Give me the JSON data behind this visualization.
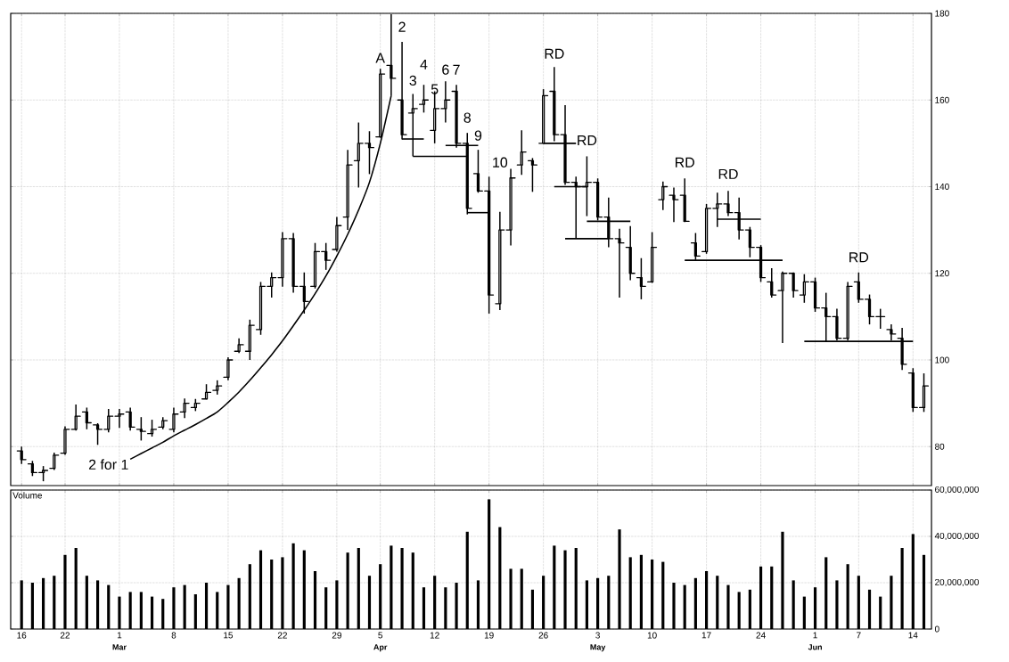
{
  "chart_data": [
    {
      "type": "candlestick",
      "color": "#000000",
      "grid": true,
      "tick_labels": "y",
      "categories": [
        "16",
        null,
        null,
        null,
        "22",
        null,
        null,
        null,
        null,
        "1",
        null,
        null,
        null,
        null,
        "8",
        null,
        null,
        null,
        null,
        "15",
        null,
        null,
        null,
        null,
        "22",
        null,
        null,
        null,
        null,
        "29",
        null,
        null,
        null,
        "5",
        null,
        null,
        null,
        null,
        "12",
        null,
        null,
        null,
        null,
        "19",
        null,
        null,
        null,
        null,
        "26",
        null,
        null,
        null,
        null,
        "3",
        null,
        null,
        null,
        null,
        "10",
        null,
        null,
        null,
        null,
        "17",
        null,
        null,
        null,
        null,
        "24",
        null,
        null,
        null,
        null,
        "1",
        null,
        null,
        null,
        "7",
        null,
        null,
        null,
        null,
        "14",
        null
      ],
      "ohlc": [
        [
          79,
          80,
          76,
          77
        ],
        [
          76,
          76.7,
          73.2,
          74
        ],
        [
          74,
          75.5,
          72,
          74.5
        ],
        [
          75,
          78.6,
          74.6,
          78
        ],
        [
          78.5,
          84.7,
          78.1,
          84
        ],
        [
          84,
          89.7,
          83.7,
          87
        ],
        [
          88,
          89,
          84,
          85.5
        ],
        [
          85,
          85.4,
          80.4,
          84
        ],
        [
          84,
          88.7,
          83.3,
          87
        ],
        [
          87,
          88.7,
          84.3,
          87.5
        ],
        [
          88,
          89,
          83.7,
          84.5
        ],
        [
          84,
          86.8,
          81.4,
          83.5
        ],
        [
          83,
          86.2,
          82.3,
          84
        ],
        [
          84.5,
          86.8,
          84,
          86
        ],
        [
          84,
          89,
          83.3,
          87.5
        ],
        [
          88,
          91.1,
          86.6,
          90
        ],
        [
          89,
          91,
          88.2,
          90
        ],
        [
          91,
          94.4,
          90.9,
          92.5
        ],
        [
          93,
          95.3,
          92,
          94
        ],
        [
          96,
          100.6,
          95.3,
          100
        ],
        [
          102,
          105,
          101.6,
          103.5
        ],
        [
          102,
          109.3,
          100,
          108
        ],
        [
          107,
          118,
          105.8,
          117
        ],
        [
          117,
          120.2,
          114.4,
          119
        ],
        [
          119,
          129.5,
          116.9,
          128
        ],
        [
          128,
          129.3,
          115.5,
          117
        ],
        [
          117,
          120.2,
          110.7,
          113.5
        ],
        [
          117,
          127,
          116.5,
          125
        ],
        [
          125,
          127,
          120.8,
          123
        ],
        [
          125.5,
          133,
          125,
          131
        ],
        [
          133,
          148.5,
          130,
          145
        ],
        [
          146,
          154.8,
          139.8,
          150
        ],
        [
          150,
          152.8,
          142.9,
          149
        ],
        [
          151.5,
          167.2,
          151.3,
          166
        ],
        [
          168,
          179.8,
          161,
          165
        ],
        [
          160,
          173.4,
          150.9,
          152
        ],
        [
          157,
          161.4,
          147,
          158
        ],
        [
          159,
          163.5,
          157.1,
          160
        ],
        [
          153,
          162,
          150,
          158
        ],
        [
          158,
          164.3,
          154.8,
          160
        ],
        [
          162,
          163.5,
          149,
          150
        ],
        [
          150,
          152.4,
          133.6,
          135
        ],
        [
          143,
          148.5,
          138.6,
          139
        ],
        [
          139,
          142.3,
          110.7,
          115
        ],
        [
          113,
          134.2,
          111.5,
          130
        ],
        [
          130,
          144.1,
          126.4,
          142
        ],
        [
          145,
          153,
          142.7,
          148
        ],
        [
          146,
          146.6,
          138.8,
          145
        ],
        [
          150,
          162.5,
          149.9,
          161
        ],
        [
          162,
          167.6,
          150.5,
          152
        ],
        [
          152,
          158.8,
          140.4,
          141
        ],
        [
          141,
          142.3,
          128,
          140
        ],
        [
          140,
          147,
          133.2,
          141
        ],
        [
          141,
          141.9,
          132.2,
          133
        ],
        [
          133,
          137.5,
          126,
          128
        ],
        [
          128,
          130.3,
          114.4,
          127
        ],
        [
          126,
          130.9,
          118.4,
          120
        ],
        [
          119,
          123.5,
          114,
          117
        ],
        [
          118,
          129.5,
          117.8,
          126
        ],
        [
          137,
          141.2,
          134.6,
          140
        ],
        [
          138,
          139.8,
          131.8,
          137
        ],
        [
          138,
          141.9,
          131.8,
          132
        ],
        [
          127,
          129.3,
          123.1,
          124
        ],
        [
          125,
          136,
          124.5,
          135
        ],
        [
          135,
          138.6,
          130.7,
          136
        ],
        [
          136,
          139,
          133.2,
          134
        ],
        [
          134,
          137.5,
          127.8,
          130
        ],
        [
          130,
          130.7,
          123.7,
          126
        ],
        [
          126,
          126.5,
          118,
          119
        ],
        [
          118,
          121.2,
          114.4,
          115
        ],
        [
          116,
          120.4,
          103.9,
          120
        ],
        [
          120,
          120.2,
          114.4,
          116
        ],
        [
          115,
          119.8,
          113.2,
          118
        ],
        [
          118,
          119,
          111.1,
          112
        ],
        [
          112,
          115.5,
          104.3,
          110
        ],
        [
          110,
          111.8,
          104.5,
          105
        ],
        [
          105,
          118,
          104.5,
          117
        ],
        [
          118,
          120.2,
          113.2,
          114
        ],
        [
          114,
          115.1,
          108.2,
          110
        ],
        [
          110,
          111.8,
          107.2,
          110
        ],
        [
          107,
          108.2,
          104.5,
          106
        ],
        [
          105,
          107.4,
          97.7,
          99
        ],
        [
          97,
          98.1,
          88,
          89
        ],
        [
          89,
          96.9,
          88,
          94
        ]
      ],
      "series": [
        {
          "type": "line",
          "color": "#000000",
          "values": [
            null,
            null,
            null,
            null,
            null,
            null,
            null,
            null,
            null,
            null,
            77.1,
            78.4,
            79.7,
            81,
            82.5,
            83.8,
            85.1,
            86.5,
            88,
            90.2,
            92.6,
            95.3,
            98.2,
            101.2,
            104.4,
            107.9,
            111.5,
            115.3,
            119.4,
            124,
            129,
            134.6,
            141,
            150,
            161,
            null,
            null,
            null,
            null,
            null,
            null,
            null,
            null,
            null,
            null,
            null,
            null,
            null,
            null,
            null,
            null,
            null,
            null,
            null,
            null,
            null,
            null,
            null,
            null,
            null,
            null,
            null,
            null,
            null,
            null,
            null,
            null,
            null,
            null,
            null,
            null,
            null,
            null,
            null,
            null,
            null,
            null,
            null,
            null,
            null,
            null,
            null,
            null,
            null
          ]
        },
        {
          "type": "line",
          "color": "#000000",
          "values": [
            null,
            null,
            null,
            null,
            null,
            null,
            null,
            null,
            null,
            null,
            null,
            null,
            null,
            null,
            null,
            null,
            null,
            null,
            null,
            null,
            null,
            null,
            null,
            null,
            null,
            null,
            null,
            null,
            null,
            null,
            null,
            null,
            null,
            null,
            null,
            151,
            151,
            151,
            null,
            null,
            null,
            null,
            null,
            null,
            null,
            null,
            null,
            null,
            null,
            null,
            null,
            null,
            null,
            null,
            null,
            null,
            null,
            null,
            null,
            null,
            null,
            null,
            null,
            null,
            null,
            null,
            null,
            null,
            null,
            null,
            null,
            null,
            null,
            null,
            null,
            null,
            null,
            null,
            null,
            null,
            null,
            null,
            null,
            null
          ]
        },
        {
          "type": "line",
          "color": "#000000",
          "values": [
            null,
            null,
            null,
            null,
            null,
            null,
            null,
            null,
            null,
            null,
            null,
            null,
            null,
            null,
            null,
            null,
            null,
            null,
            null,
            null,
            null,
            null,
            null,
            null,
            null,
            null,
            null,
            null,
            null,
            null,
            null,
            null,
            null,
            null,
            null,
            null,
            147,
            147,
            147,
            147,
            147,
            147,
            null,
            null,
            null,
            null,
            null,
            null,
            null,
            null,
            null,
            null,
            null,
            null,
            null,
            null,
            null,
            null,
            null,
            null,
            null,
            null,
            null,
            null,
            null,
            null,
            null,
            null,
            null,
            null,
            null,
            null,
            null,
            null,
            null,
            null,
            null,
            null,
            null,
            null,
            null,
            null,
            null,
            null
          ]
        },
        {
          "type": "line",
          "color": "#000000",
          "values": [
            null,
            null,
            null,
            null,
            null,
            null,
            null,
            null,
            null,
            null,
            null,
            null,
            null,
            null,
            null,
            null,
            null,
            null,
            null,
            null,
            null,
            null,
            null,
            null,
            null,
            null,
            null,
            null,
            null,
            null,
            null,
            null,
            null,
            null,
            null,
            null,
            null,
            null,
            null,
            149.5,
            149.5,
            149.5,
            149.5,
            null,
            null,
            null,
            null,
            null,
            null,
            null,
            null,
            null,
            null,
            null,
            null,
            null,
            null,
            null,
            null,
            null,
            null,
            null,
            null,
            null,
            null,
            null,
            null,
            null,
            null,
            null,
            null,
            null,
            null,
            null,
            null,
            null,
            null,
            null,
            null,
            null,
            null,
            null,
            null,
            null
          ]
        },
        {
          "type": "line",
          "color": "#000000",
          "values": [
            null,
            null,
            null,
            null,
            null,
            null,
            null,
            null,
            null,
            null,
            null,
            null,
            null,
            null,
            null,
            null,
            null,
            null,
            null,
            null,
            null,
            null,
            null,
            null,
            null,
            null,
            null,
            null,
            null,
            null,
            null,
            null,
            null,
            null,
            null,
            null,
            null,
            null,
            null,
            null,
            null,
            134,
            134,
            134,
            null,
            null,
            null,
            null,
            null,
            null,
            null,
            null,
            null,
            null,
            null,
            null,
            null,
            null,
            null,
            null,
            null,
            null,
            null,
            null,
            null,
            null,
            null,
            null,
            null,
            null,
            null,
            null,
            null,
            null,
            null,
            null,
            null,
            null,
            null,
            null,
            null,
            null,
            null,
            null
          ]
        },
        {
          "type": "line",
          "color": "#000000",
          "values": [
            null,
            null,
            null,
            null,
            null,
            null,
            null,
            null,
            null,
            null,
            null,
            null,
            null,
            null,
            null,
            null,
            null,
            null,
            null,
            null,
            null,
            null,
            null,
            null,
            null,
            null,
            null,
            null,
            null,
            null,
            null,
            null,
            null,
            null,
            null,
            null,
            null,
            null,
            null,
            null,
            null,
            null,
            null,
            null,
            null,
            null,
            null,
            null,
            150,
            150,
            150,
            150,
            null,
            null,
            null,
            null,
            null,
            null,
            null,
            null,
            null,
            null,
            null,
            null,
            null,
            null,
            null,
            null,
            null,
            null,
            null,
            null,
            null,
            null,
            null,
            null,
            null,
            null,
            null,
            null,
            null,
            null,
            null,
            null
          ]
        },
        {
          "type": "line",
          "color": "#000000",
          "values": [
            null,
            null,
            null,
            null,
            null,
            null,
            null,
            null,
            null,
            null,
            null,
            null,
            null,
            null,
            null,
            null,
            null,
            null,
            null,
            null,
            null,
            null,
            null,
            null,
            null,
            null,
            null,
            null,
            null,
            null,
            null,
            null,
            null,
            null,
            null,
            null,
            null,
            null,
            null,
            null,
            null,
            null,
            null,
            null,
            null,
            null,
            null,
            null,
            null,
            140,
            140,
            140,
            140,
            null,
            null,
            null,
            null,
            null,
            null,
            null,
            null,
            null,
            null,
            null,
            null,
            null,
            null,
            null,
            null,
            null,
            null,
            null,
            null,
            null,
            null,
            null,
            null,
            null,
            null,
            null,
            null,
            null,
            null,
            null
          ]
        },
        {
          "type": "line",
          "color": "#000000",
          "values": [
            null,
            null,
            null,
            null,
            null,
            null,
            null,
            null,
            null,
            null,
            null,
            null,
            null,
            null,
            null,
            null,
            null,
            null,
            null,
            null,
            null,
            null,
            null,
            null,
            null,
            null,
            null,
            null,
            null,
            null,
            null,
            null,
            null,
            null,
            null,
            null,
            null,
            null,
            null,
            null,
            null,
            null,
            null,
            null,
            null,
            null,
            null,
            null,
            null,
            null,
            128,
            128,
            128,
            128,
            128,
            null,
            null,
            null,
            null,
            null,
            null,
            null,
            null,
            null,
            null,
            null,
            null,
            null,
            null,
            null,
            null,
            null,
            null,
            null,
            null,
            null,
            null,
            null,
            null,
            null,
            null,
            null,
            null,
            null
          ]
        },
        {
          "type": "line",
          "color": "#000000",
          "values": [
            null,
            null,
            null,
            null,
            null,
            null,
            null,
            null,
            null,
            null,
            null,
            null,
            null,
            null,
            null,
            null,
            null,
            null,
            null,
            null,
            null,
            null,
            null,
            null,
            null,
            null,
            null,
            null,
            null,
            null,
            null,
            null,
            null,
            null,
            null,
            null,
            null,
            null,
            null,
            null,
            null,
            null,
            null,
            null,
            null,
            null,
            null,
            null,
            null,
            null,
            null,
            null,
            132,
            132,
            132,
            132,
            132,
            null,
            null,
            null,
            null,
            null,
            null,
            null,
            null,
            null,
            null,
            null,
            null,
            null,
            null,
            null,
            null,
            null,
            null,
            null,
            null,
            null,
            null,
            null,
            null,
            null,
            null,
            null
          ]
        },
        {
          "type": "line",
          "color": "#000000",
          "values": [
            null,
            null,
            null,
            null,
            null,
            null,
            null,
            null,
            null,
            null,
            null,
            null,
            null,
            null,
            null,
            null,
            null,
            null,
            null,
            null,
            null,
            null,
            null,
            null,
            null,
            null,
            null,
            null,
            null,
            null,
            null,
            null,
            null,
            null,
            null,
            null,
            null,
            null,
            null,
            null,
            null,
            null,
            null,
            null,
            null,
            null,
            null,
            null,
            null,
            null,
            null,
            null,
            null,
            null,
            null,
            null,
            null,
            null,
            null,
            null,
            null,
            123,
            123,
            123,
            123,
            123,
            123,
            123,
            123,
            123,
            123,
            null,
            null,
            null,
            null,
            null,
            null,
            null,
            null,
            null,
            null,
            null,
            null,
            null
          ]
        },
        {
          "type": "line",
          "color": "#000000",
          "values": [
            null,
            null,
            null,
            null,
            null,
            null,
            null,
            null,
            null,
            null,
            null,
            null,
            null,
            null,
            null,
            null,
            null,
            null,
            null,
            null,
            null,
            null,
            null,
            null,
            null,
            null,
            null,
            null,
            null,
            null,
            null,
            null,
            null,
            null,
            null,
            null,
            null,
            null,
            null,
            null,
            null,
            null,
            null,
            null,
            null,
            null,
            null,
            null,
            null,
            null,
            null,
            null,
            null,
            null,
            null,
            null,
            null,
            null,
            null,
            null,
            null,
            null,
            null,
            null,
            132.5,
            132.5,
            132.5,
            132.5,
            132.5,
            null,
            null,
            null,
            null,
            null,
            null,
            null,
            null,
            null,
            null,
            null,
            null,
            null,
            null,
            null
          ]
        },
        {
          "type": "line",
          "color": "#000000",
          "values": [
            null,
            null,
            null,
            null,
            null,
            null,
            null,
            null,
            null,
            null,
            null,
            null,
            null,
            null,
            null,
            null,
            null,
            null,
            null,
            null,
            null,
            null,
            null,
            null,
            null,
            null,
            null,
            null,
            null,
            null,
            null,
            null,
            null,
            null,
            null,
            null,
            null,
            null,
            null,
            null,
            null,
            null,
            null,
            null,
            null,
            null,
            null,
            null,
            null,
            null,
            null,
            null,
            null,
            null,
            null,
            null,
            null,
            null,
            null,
            null,
            null,
            null,
            null,
            null,
            null,
            null,
            null,
            null,
            null,
            null,
            null,
            null,
            104.3,
            104.3,
            104.3,
            104.3,
            104.3,
            104.3,
            104.3,
            104.3,
            104.3,
            104.3,
            104.3,
            null
          ]
        }
      ],
      "ylim": [
        71,
        180
      ],
      "yticks": [
        80,
        100,
        120,
        140,
        160,
        180
      ],
      "annotations": [
        "2 for 1",
        "A",
        "2",
        "3",
        "4",
        "5",
        "6",
        "7",
        "8",
        "9",
        "10",
        "RD",
        "RD",
        "RD",
        "RD",
        "RD"
      ]
    },
    {
      "type": "bar",
      "color": "#000000",
      "grid": true,
      "ylabel": "Volume",
      "categories": [
        "16",
        null,
        null,
        null,
        "22",
        null,
        null,
        null,
        null,
        "1",
        null,
        null,
        null,
        null,
        "8",
        null,
        null,
        null,
        null,
        "15",
        null,
        null,
        null,
        null,
        "22",
        null,
        null,
        null,
        null,
        "29",
        null,
        null,
        null,
        "5",
        null,
        null,
        null,
        null,
        "12",
        null,
        null,
        null,
        null,
        "19",
        null,
        null,
        null,
        null,
        "26",
        null,
        null,
        null,
        null,
        "3",
        null,
        null,
        null,
        null,
        "10",
        null,
        null,
        null,
        null,
        "17",
        null,
        null,
        null,
        null,
        "24",
        null,
        null,
        null,
        null,
        "1",
        null,
        null,
        null,
        "7",
        null,
        null,
        null,
        null,
        "14",
        null
      ],
      "values": [
        21000000,
        20000000,
        22000000,
        23000000,
        32000000,
        35000000,
        23000000,
        21000000,
        19000000,
        14000000,
        16000000,
        16000000,
        14000000,
        13000000,
        18000000,
        19000000,
        15000000,
        20000000,
        16000000,
        19000000,
        22000000,
        28000000,
        34000000,
        30000000,
        31000000,
        37000000,
        34000000,
        25000000,
        18000000,
        21000000,
        33000000,
        35000000,
        23000000,
        28000000,
        36000000,
        35000000,
        33000000,
        18000000,
        23000000,
        18000000,
        20000000,
        42000000,
        21000000,
        56000000,
        44000000,
        26000000,
        26000000,
        17000000,
        23000000,
        36000000,
        34000000,
        35000000,
        21000000,
        22000000,
        23000000,
        43000000,
        31000000,
        32000000,
        30000000,
        29000000,
        20000000,
        19000000,
        22000000,
        25000000,
        23000000,
        19000000,
        16000000,
        17000000,
        27000000,
        27000000,
        42000000,
        21000000,
        14000000,
        18000000,
        31000000,
        21000000,
        28000000,
        23000000,
        17000000,
        14000000,
        23000000,
        35000000,
        41000000,
        32000000
      ],
      "ylim": [
        0,
        60000000
      ],
      "yticks": [
        0,
        {
          "value": 20000000,
          "label": "20,000,000"
        },
        {
          "value": 40000000,
          "label": "40,000,000"
        },
        {
          "value": 60000000,
          "label": "60,000,000"
        }
      ],
      "annotations": [
        "Mar",
        "Apr",
        "May",
        "Jun"
      ]
    }
  ]
}
